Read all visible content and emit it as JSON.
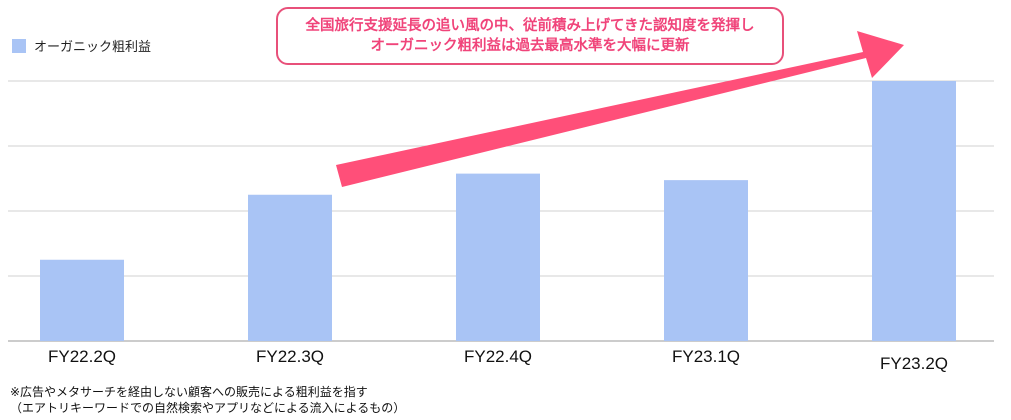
{
  "chart_data": {
    "type": "bar",
    "categories": [
      "FY22.2Q",
      "FY22.3Q",
      "FY22.4Q",
      "FY23.1Q",
      "FY23.2Q"
    ],
    "series": [
      {
        "name": "オーガニック粗利益",
        "values": [
          1.0,
          1.8,
          2.06,
          1.98,
          3.2
        ]
      }
    ],
    "ylim": [
      0,
      3.2
    ],
    "grid": true,
    "y_gridlines": 4,
    "legend_position": "top-left",
    "bar_color": "#a9c4f5"
  },
  "callout": {
    "line1": "全国旅行支援延長の追い風の中、従前積み上げてきた認知度を発揮し",
    "line2": "オーガニック粗利益は過去最高水準を大幅に更新",
    "arrow_color": "#ff4f79"
  },
  "footnote": {
    "line1": "※広告やメタサーチを経由しない顧客への販売による粗利益を指す",
    "line2": "（エアトリキーワードでの自然検索やアプリなどによる流入によるもの）"
  }
}
